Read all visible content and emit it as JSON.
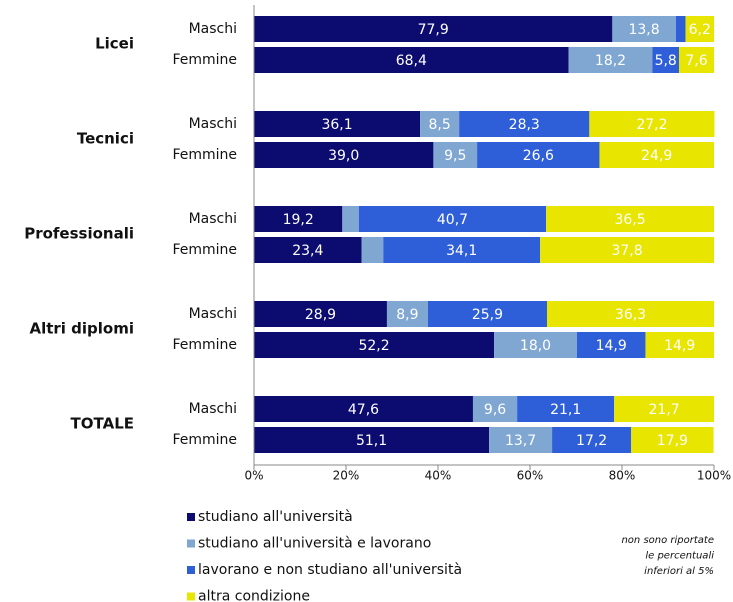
{
  "chart_data": {
    "type": "stacked-bar-horizontal",
    "groups": [
      "Licei",
      "Tecnici",
      "Professionali",
      "Altri diplomi",
      "TOTALE"
    ],
    "categories": [
      "Maschi",
      "Femmine",
      "Maschi",
      "Femmine",
      "Maschi",
      "Femmine",
      "Maschi",
      "Femmine",
      "Maschi",
      "Femmine"
    ],
    "series": [
      {
        "name": "studiano all'università",
        "color": "#0b0b70",
        "values": [
          77.9,
          68.4,
          36.1,
          39.0,
          19.2,
          23.4,
          28.9,
          52.2,
          47.6,
          51.1
        ],
        "value_labels": [
          "77,9",
          "68,4",
          "36,1",
          "39,0",
          "19,2",
          "23,4",
          "28,9",
          "52,2",
          "47,6",
          "51,1"
        ]
      },
      {
        "name": "studiano all'università e lavorano",
        "color": "#7fa7d2",
        "values": [
          13.8,
          18.2,
          8.5,
          9.5,
          3.6,
          4.7,
          8.9,
          18.0,
          9.6,
          13.7
        ],
        "value_labels": [
          "13,8",
          "18,2",
          "8,5",
          "9,5",
          null,
          null,
          "8,9",
          "18,0",
          "9,6",
          "13,7"
        ]
      },
      {
        "name": "lavorano e non studiano all'università",
        "color": "#2f5fd8",
        "values": [
          2.1,
          5.8,
          28.3,
          26.6,
          40.7,
          34.1,
          25.9,
          14.9,
          21.1,
          17.2
        ],
        "value_labels": [
          null,
          "5,8",
          "28,3",
          "26,6",
          "40,7",
          "34,1",
          "25,9",
          "14,9",
          "21,1",
          "17,2"
        ]
      },
      {
        "name": "altra condizione",
        "color": "#e8e600",
        "values": [
          6.2,
          7.6,
          27.2,
          24.9,
          36.5,
          37.8,
          36.3,
          14.9,
          21.7,
          17.9
        ],
        "value_labels": [
          "6,2",
          "7,6",
          "27,2",
          "24,9",
          "36,5",
          "37,8",
          "36,3",
          "14,9",
          "21,7",
          "17,9"
        ]
      }
    ],
    "xlim": [
      0,
      100
    ],
    "xticks": [
      {
        "value": 0,
        "label": "0%"
      },
      {
        "value": 20,
        "label": "20%"
      },
      {
        "value": 40,
        "label": "40%"
      },
      {
        "value": 60,
        "label": "60%"
      },
      {
        "value": 80,
        "label": "80%"
      },
      {
        "value": 100,
        "label": "100%"
      }
    ],
    "annotation": [
      "non sono riportate",
      "le percentuali",
      "inferiori al 5%"
    ],
    "legend": "bottom-left"
  }
}
